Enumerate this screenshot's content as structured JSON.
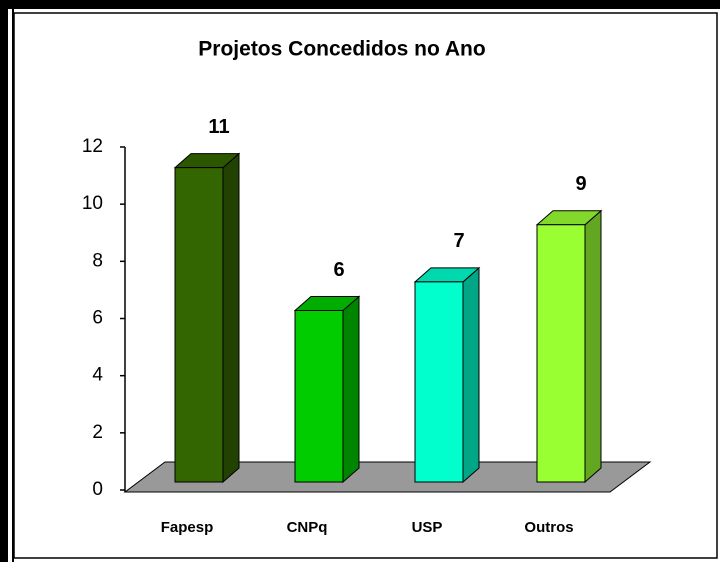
{
  "chart_data": {
    "type": "bar3d",
    "title": "Projetos Concedidos no Ano",
    "categories": [
      "Fapesp",
      "CNPq",
      "USP",
      "Outros"
    ],
    "values": [
      11,
      6,
      7,
      9
    ],
    "colors": [
      "#336600",
      "#00cc00",
      "#00ffcc",
      "#99ff33"
    ],
    "ylim": [
      0,
      12
    ],
    "yticks": [
      0,
      2,
      4,
      6,
      8,
      10,
      12
    ]
  }
}
